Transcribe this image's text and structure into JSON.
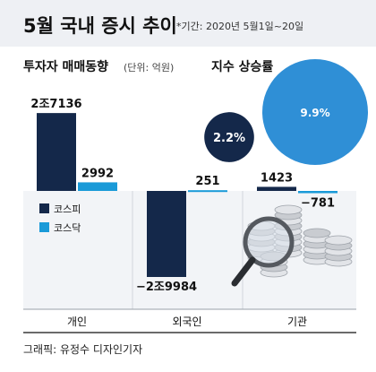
{
  "header": {
    "title": "5월 국내 증시 추이",
    "subtitle": "*기간: 2020년 5월1일~20일"
  },
  "colors": {
    "kospi": "#14284a",
    "kosdaq": "#1a9ad8",
    "band": "#eef0f4",
    "panel": "#f2f4f7",
    "bubble_small": "#14284a",
    "bubble_large": "#2f8fd6"
  },
  "icon": "magnifier-over-coins-icon",
  "credit": "그래픽: 유정수 디자인기자",
  "chart_data": [
    {
      "type": "bar",
      "title": "투자자 매매동향",
      "unit_label": "(단위: 억원)",
      "unit": "억원",
      "categories": [
        "개인",
        "외국인",
        "기관"
      ],
      "series": [
        {
          "name": "코스피",
          "values": [
            27136,
            -29984,
            1423
          ],
          "labels": [
            "2조7136",
            "−2조9984",
            "1423"
          ]
        },
        {
          "name": "코스닥",
          "values": [
            2992,
            251,
            -781
          ],
          "labels": [
            "2992",
            "251",
            "−781"
          ]
        }
      ],
      "legend": "middle-left"
    },
    {
      "type": "bubble",
      "title": "지수 상승률",
      "unit": "%",
      "items": [
        {
          "name": "코스피",
          "value": 2.2,
          "label": "2.2%"
        },
        {
          "name": "코스닥",
          "value": 9.9,
          "label": "9.9%"
        }
      ]
    }
  ]
}
